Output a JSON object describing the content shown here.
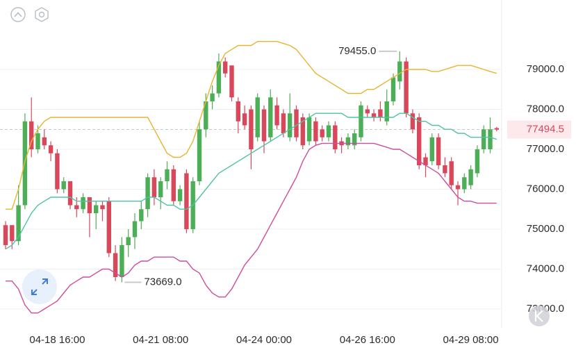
{
  "chart_data": {
    "type": "candlestick",
    "categories": [
      "04-17 08:00",
      "04-17 12:00",
      "04-17 16:00",
      "04-17 20:00",
      "04-18 00:00",
      "04-18 04:00",
      "04-18 08:00",
      "04-18 12:00",
      "04-18 16:00",
      "04-18 20:00",
      "04-19 00:00",
      "04-19 04:00",
      "04-19 08:00",
      "04-19 12:00",
      "04-19 16:00",
      "04-19 20:00",
      "04-20 00:00",
      "04-20 04:00",
      "04-20 08:00",
      "04-20 12:00",
      "04-20 16:00",
      "04-20 20:00",
      "04-21 00:00",
      "04-21 04:00",
      "04-21 08:00",
      "04-21 12:00",
      "04-21 16:00",
      "04-21 20:00",
      "04-22 00:00",
      "04-22 04:00",
      "04-22 08:00",
      "04-22 12:00",
      "04-22 16:00",
      "04-22 20:00",
      "04-23 00:00",
      "04-23 04:00",
      "04-23 08:00",
      "04-23 12:00",
      "04-23 16:00",
      "04-23 20:00",
      "04-24 00:00",
      "04-24 04:00",
      "04-24 08:00",
      "04-24 12:00",
      "04-24 16:00",
      "04-24 20:00",
      "04-25 00:00",
      "04-25 04:00",
      "04-25 08:00",
      "04-25 12:00",
      "04-25 16:00",
      "04-25 20:00",
      "04-26 00:00",
      "04-26 04:00",
      "04-26 08:00",
      "04-26 12:00",
      "04-26 16:00",
      "04-26 20:00",
      "04-27 00:00",
      "04-27 04:00",
      "04-27 08:00",
      "04-27 12:00",
      "04-27 16:00",
      "04-27 20:00",
      "04-28 00:00",
      "04-28 04:00",
      "04-28 08:00",
      "04-28 12:00",
      "04-28 16:00",
      "04-28 20:00",
      "04-29 00:00",
      "04-29 04:00",
      "04-29 08:00",
      "04-29 12:00",
      "04-29 16:00",
      "04-29 20:00",
      "04-30 00:00"
    ],
    "open": [
      75100,
      75100,
      74700,
      75600,
      77700,
      77000,
      77300,
      77100,
      76900,
      76000,
      76200,
      75600,
      75500,
      75800,
      75400,
      75600,
      75700,
      74400,
      73800,
      74600,
      74800,
      75200,
      75500,
      76300,
      75800,
      76200,
      76500,
      75700,
      76400,
      75000,
      76200,
      77500,
      78200,
      78400,
      79200,
      79100,
      78200,
      77900,
      78000,
      77300,
      78000,
      77300,
      78100,
      77900,
      77300,
      78000,
      77800,
      77200,
      77700,
      77500,
      77300,
      77600,
      77200,
      77100,
      77100,
      77300,
      78000,
      77900,
      78000,
      77700,
      78200,
      78700,
      79200,
      77900,
      77800,
      76800,
      76700,
      77300,
      76600,
      76700,
      76100,
      76000,
      76100,
      76400,
      77000,
      77000,
      77530
    ],
    "high": [
      75200,
      75100,
      76100,
      77900,
      78300,
      77600,
      77500,
      77200,
      77000,
      76300,
      76200,
      75800,
      75900,
      75800,
      75700,
      75700,
      75800,
      74600,
      74800,
      75000,
      75400,
      75700,
      76400,
      76500,
      76300,
      76700,
      76600,
      76100,
      76500,
      76300,
      77700,
      78400,
      78600,
      79400,
      79300,
      79100,
      78300,
      78100,
      78100,
      78400,
      78100,
      78500,
      78300,
      78000,
      78400,
      78100,
      77900,
      77900,
      77800,
      77600,
      77700,
      77700,
      77300,
      77400,
      77500,
      78200,
      78100,
      78000,
      78200,
      78500,
      78900,
      79455,
      79300,
      78000,
      77900,
      76900,
      77400,
      77400,
      76800,
      76800,
      76200,
      76400,
      76600,
      77100,
      77600,
      77800,
      77560
    ],
    "low": [
      74500,
      74500,
      74600,
      75500,
      76800,
      76900,
      77000,
      76700,
      75900,
      75900,
      75500,
      75300,
      75400,
      74800,
      75000,
      75200,
      74300,
      73700,
      73669,
      74300,
      74500,
      75000,
      75300,
      75600,
      75500,
      76000,
      75600,
      75600,
      74900,
      74900,
      76100,
      77300,
      78000,
      78300,
      78800,
      78200,
      77400,
      77500,
      76500,
      77200,
      76900,
      77200,
      77500,
      77300,
      77200,
      77200,
      77000,
      77100,
      77100,
      77200,
      77200,
      76900,
      76900,
      77000,
      77000,
      77200,
      77800,
      77700,
      77700,
      77600,
      78100,
      78500,
      77800,
      77400,
      76500,
      76300,
      76600,
      76500,
      76300,
      76000,
      75600,
      75900,
      76000,
      76300,
      76900,
      76900,
      77450
    ],
    "close": [
      74600,
      74700,
      75600,
      77700,
      77000,
      77400,
      77100,
      76900,
      76000,
      76200,
      75600,
      75500,
      75800,
      75400,
      75600,
      75500,
      74400,
      73800,
      74600,
      74800,
      75200,
      75500,
      76300,
      75800,
      76200,
      76500,
      75700,
      76000,
      75000,
      76200,
      77500,
      78200,
      78400,
      79200,
      78900,
      78300,
      77700,
      77600,
      77000,
      78300,
      77200,
      78300,
      77600,
      77400,
      77900,
      77300,
      77100,
      77800,
      77200,
      77300,
      77600,
      77000,
      77100,
      77300,
      77400,
      78100,
      77900,
      77800,
      77800,
      78200,
      78800,
      79200,
      77900,
      77500,
      76600,
      76600,
      77300,
      76600,
      76400,
      76100,
      76000,
      76300,
      76500,
      77000,
      77500,
      77500,
      77494.5
    ],
    "up_color": "#4cae56",
    "down_color": "#d9485a",
    "lines": [
      {
        "color": "#e6b530",
        "values": [
          75500,
          75500,
          76000,
          76700,
          77200,
          77500,
          77700,
          77800,
          77800,
          77800,
          77800,
          77800,
          77800,
          77800,
          77800,
          77800,
          77800,
          77800,
          77800,
          77800,
          77800,
          77800,
          77800,
          77500,
          77200,
          76900,
          76800,
          76800,
          76900,
          77200,
          77700,
          78200,
          78700,
          79100,
          79400,
          79500,
          79600,
          79600,
          79600,
          79700,
          79700,
          79700,
          79700,
          79650,
          79600,
          79500,
          79300,
          79100,
          78900,
          78800,
          78700,
          78600,
          78500,
          78400,
          78400,
          78400,
          78500,
          78500,
          78600,
          78700,
          78800,
          78900,
          79000,
          79000,
          79000,
          79000,
          78950,
          78950,
          79000,
          79050,
          79100,
          79100,
          79100,
          79050,
          79000,
          78950,
          78900
        ]
      },
      {
        "color": "#4fc4a4",
        "values": [
          74500,
          74600,
          74800,
          75100,
          75400,
          75600,
          75700,
          75800,
          75800,
          75800,
          75800,
          75700,
          75700,
          75700,
          75700,
          75700,
          75700,
          75700,
          75700,
          75700,
          75700,
          75700,
          75800,
          75800,
          75700,
          75600,
          75600,
          75500,
          75500,
          75600,
          75800,
          76000,
          76200,
          76400,
          76500,
          76600,
          76700,
          76800,
          76900,
          77000,
          77100,
          77200,
          77300,
          77400,
          77500,
          77600,
          77700,
          77800,
          77900,
          77900,
          77900,
          77900,
          77900,
          77800,
          77800,
          77800,
          77800,
          77800,
          77800,
          77800,
          77800,
          77900,
          77900,
          77800,
          77700,
          77700,
          77600,
          77600,
          77500,
          77500,
          77400,
          77400,
          77300,
          77300,
          77300,
          77300,
          77250
        ]
      },
      {
        "color": "#cc4d9f",
        "values": [
          73700,
          73700,
          73500,
          73100,
          72900,
          72900,
          73000,
          73100,
          73200,
          73400,
          73600,
          73700,
          73800,
          73800,
          73900,
          74000,
          74000,
          73900,
          73800,
          73900,
          74100,
          74200,
          74200,
          74300,
          74300,
          74300,
          74300,
          74200,
          74200,
          74000,
          73900,
          73600,
          73400,
          73300,
          73300,
          73500,
          73800,
          74100,
          74300,
          74500,
          74800,
          75100,
          75400,
          75700,
          76000,
          76300,
          76700,
          77000,
          77100,
          77150,
          77150,
          77150,
          77150,
          77150,
          77150,
          77150,
          77150,
          77150,
          77100,
          77050,
          77000,
          77000,
          76900,
          76800,
          76700,
          76600,
          76500,
          76400,
          76200,
          76000,
          75800,
          75700,
          75700,
          75650,
          75650,
          75650,
          75650
        ]
      }
    ],
    "ylim": [
      72565,
      80739
    ],
    "yticks": [
      {
        "value": 73000,
        "label": "73000.0"
      },
      {
        "value": 74000,
        "label": "74000.0"
      },
      {
        "value": 75000,
        "label": "75000.0"
      },
      {
        "value": 76000,
        "label": "76000.0"
      },
      {
        "value": 77000,
        "label": "77000.0"
      },
      {
        "value": 78000,
        "label": "78000.0"
      },
      {
        "value": 79000,
        "label": "79000.0"
      }
    ],
    "xticks": [
      "04-18 16:00",
      "04-21 08:00",
      "04-24 00:00",
      "04-26 16:00",
      "04-29 08:00"
    ],
    "grid": true,
    "last_price": 77494.5,
    "max_label": {
      "value": 79455,
      "label": "79455.0"
    },
    "min_label": {
      "value": 73669,
      "label": "73669.0"
    }
  }
}
